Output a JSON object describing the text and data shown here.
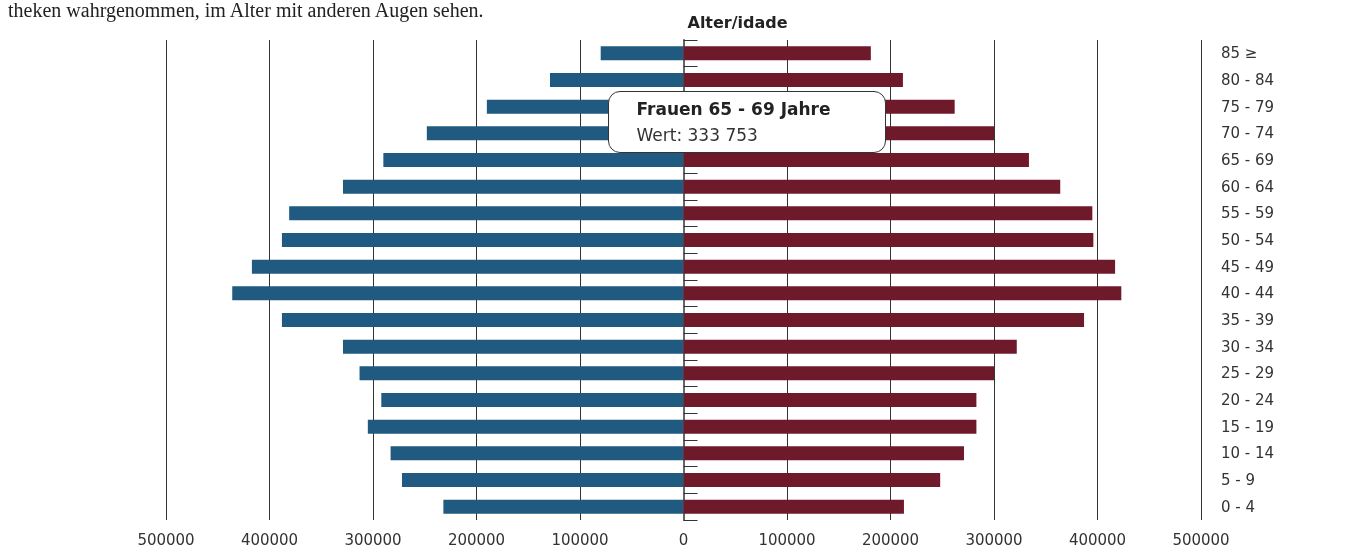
{
  "chart_data": {
    "type": "bar",
    "orientation": "horizontal",
    "stacked": true,
    "ylabel": "Alter/idade",
    "categories": [
      "85 ≥",
      "80 - 84",
      "75 - 79",
      "70 - 74",
      "65 - 69",
      "60 - 64",
      "55 - 59",
      "50 - 54",
      "45 - 49",
      "40 - 44",
      "35 - 39",
      "30 - 34",
      "25 - 29",
      "20 - 24",
      "15 - 19",
      "10 - 14",
      "5 - 9",
      "0 - 4"
    ],
    "series": [
      {
        "color": "#215a80",
        "values": [
          -80000,
          -129000,
          -190000,
          -248000,
          -290000,
          -329000,
          -381000,
          -388000,
          -417000,
          -436000,
          -388000,
          -329000,
          -313000,
          -292000,
          -305000,
          -283000,
          -272000,
          -232000
        ]
      },
      {
        "color": "#6e1a2a",
        "values": [
          181000,
          212000,
          262000,
          300000,
          333753,
          364000,
          395000,
          396000,
          417000,
          423000,
          387000,
          322000,
          300000,
          283000,
          283000,
          271000,
          248000,
          213000
        ]
      }
    ],
    "xlim": [
      -500000,
      500000
    ],
    "xticks": [
      {
        "value": -500000,
        "label": "500000"
      },
      {
        "value": -400000,
        "label": "400000"
      },
      {
        "value": -300000,
        "label": "300000"
      },
      {
        "value": -200000,
        "label": "200000"
      },
      {
        "value": -100000,
        "label": "100000"
      },
      0,
      100000,
      200000,
      300000,
      400000,
      500000
    ],
    "grid": "x",
    "annotations": [
      "theken wahrgenommen, im Alter mit anderen Augen sehen.",
      "Frauen 65 - 69 Jahre\nWert: 333 753"
    ]
  }
}
